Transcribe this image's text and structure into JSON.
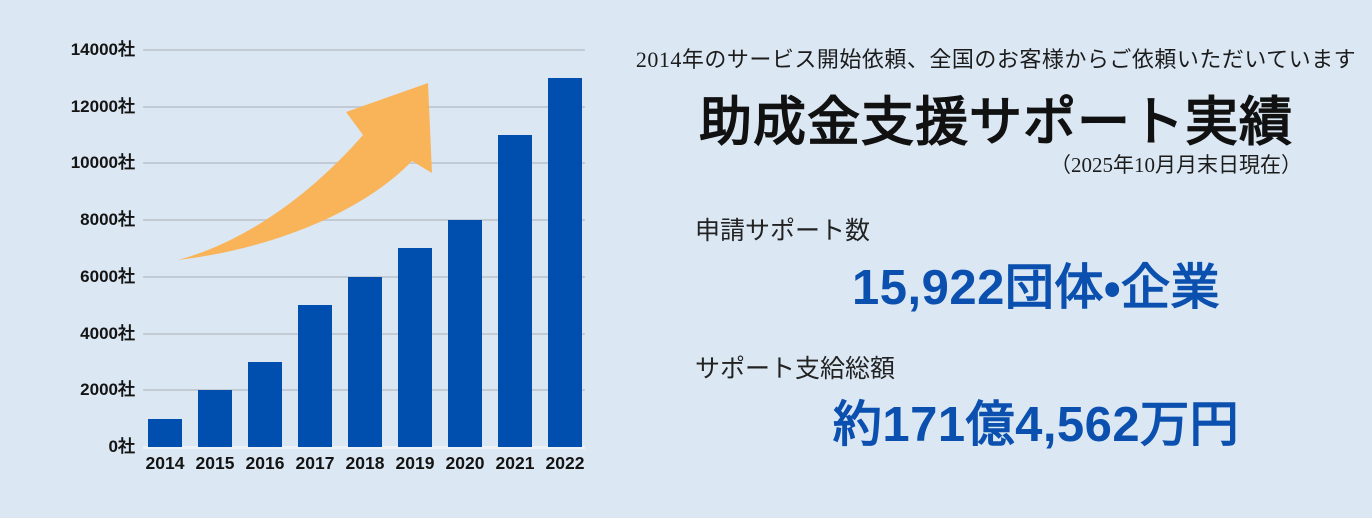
{
  "page": {
    "background_color": "#dbe8f4"
  },
  "chart_data": {
    "type": "bar",
    "title": "",
    "xlabel": "",
    "ylabel": "",
    "categories": [
      "2014",
      "2015",
      "2016",
      "2017",
      "2018",
      "2019",
      "2020",
      "2021",
      "2022"
    ],
    "values": [
      1000,
      2000,
      3000,
      5000,
      6000,
      7000,
      8000,
      11000,
      13000
    ],
    "unit": "社",
    "ylim": [
      0,
      14000
    ],
    "yticks": [
      0,
      2000,
      4000,
      6000,
      8000,
      10000,
      12000,
      14000
    ],
    "ytick_labels": [
      "0社",
      "2000社",
      "4000社",
      "6000社",
      "8000社",
      "10000社",
      "12000社",
      "14000社"
    ],
    "grid": true,
    "legend_position": "none",
    "bar_color": "#004fae",
    "gridline_color": "#c2cbd4",
    "baseline_color": "#edf2f7",
    "arrow_color": "#f9b45a",
    "annotation": "growth-arrow"
  },
  "info_panel": {
    "tagline": "2014年のサービス開始依頼、全国のお客様からご依頼いただいています",
    "title": "助成金支援サポート実績",
    "as_of": "（2025年10月月末日現在）",
    "accent_color": "#0b50ae",
    "stats": [
      {
        "label": "申請サポート数",
        "value": "15,922団体・企業"
      },
      {
        "label": "サポート支給総額",
        "value": "約171億4,562万円"
      }
    ]
  }
}
